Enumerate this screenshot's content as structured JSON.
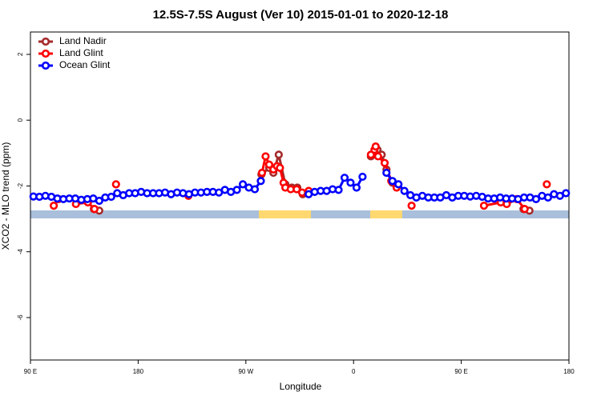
{
  "chart_data": {
    "type": "line",
    "title": "12.5S-7.5S August (Ver 10)   2015-01-01 to 2020-12-18",
    "x_label": "Longitude",
    "y_label": "XCO2 - MLO trend (ppm)",
    "xlim": [
      90,
      540
    ],
    "xticks": [
      {
        "value": 90,
        "label": "90 E"
      },
      180,
      {
        "value": 270,
        "label": "90 W"
      },
      {
        "value": 360,
        "label": "0"
      },
      {
        "value": 450,
        "label": "90 E"
      },
      {
        "value": 540,
        "label": "180"
      }
    ],
    "ylim": [
      -7.29,
      2.68
    ],
    "yticks": [
      2,
      0,
      -2,
      -4,
      -6
    ],
    "legend": "top-left",
    "series": [
      {
        "name": "Land Nadir",
        "color": "#a52a2a",
        "x": [
          143,
          147.5,
          200,
          283,
          289.5,
          293,
          297.5,
          303,
          308.5,
          313,
          317.5,
          350,
          374.5,
          380,
          383.5,
          387.5,
          392.5,
          397.5,
          450,
          502,
          507
        ],
        "values": [
          -2.7,
          -2.75,
          null,
          -1.65,
          -1.45,
          -1.6,
          -1.05,
          -1.95,
          -2.05,
          -2.05,
          -2.25,
          null,
          -1.1,
          -0.9,
          -1.05,
          -1.5,
          -1.9,
          -1.95,
          null,
          -2.7,
          -2.75
        ]
      },
      {
        "name": "Land Glint",
        "color": "#ff0000",
        "x": [
          109.5,
          113.5,
          120,
          128,
          138,
          143.5,
          150,
          161.5,
          200,
          222,
          250,
          283.5,
          286.5,
          289.5,
          293,
          296,
          298.5,
          301.5,
          303,
          307.5,
          312.5,
          317,
          322.5,
          350,
          374.5,
          377.5,
          378.5,
          380.5,
          386,
          391.5,
          396,
          402,
          408.5,
          440,
          469,
          483,
          488,
          496.5,
          503,
          510,
          521.5
        ],
        "values": [
          -2.6,
          -2.4,
          null,
          -2.55,
          -2.5,
          -2.7,
          null,
          -1.95,
          null,
          -2.3,
          null,
          -1.6,
          -1.1,
          -1.35,
          -1.5,
          -1.4,
          -1.45,
          -1.9,
          -2.05,
          -2.1,
          -2.1,
          -2.2,
          -2.15,
          null,
          -1.05,
          -0.9,
          -0.8,
          -1.1,
          -1.3,
          -1.85,
          -2.05,
          null,
          -2.6,
          null,
          -2.6,
          -2.5,
          -2.55,
          -2.4,
          -2.7,
          null,
          -1.95
        ]
      },
      {
        "name": "Ocean Glint",
        "color": "#0000ff",
        "x": [
          92.5,
          97.5,
          102.5,
          107.5,
          112.5,
          117.5,
          122.5,
          127.5,
          132.5,
          137.5,
          142.5,
          147.5,
          152.5,
          157.5,
          162.5,
          167.5,
          172.5,
          177.5,
          182.5,
          187.5,
          192.5,
          197.5,
          202.5,
          207.5,
          212.5,
          217.5,
          222.5,
          227.5,
          232.5,
          237.5,
          242.5,
          247.5,
          252.5,
          257.5,
          262.5,
          267.5,
          272.5,
          277.5,
          282.5,
          302.5,
          322.5,
          327.5,
          332.5,
          337.5,
          342.5,
          347.5,
          352.5,
          357.5,
          362.5,
          367.5,
          377.5,
          387.5,
          392.5,
          397.5,
          402.5,
          407.5,
          412.5,
          417.5,
          422.5,
          427.5,
          432.5,
          437.5,
          442.5,
          447.5,
          452.5,
          457.5,
          462.5,
          467.5,
          472.5,
          477.5,
          482.5,
          487.5,
          492.5,
          497.5,
          502.5,
          507.5,
          512.5,
          517.5,
          522.5,
          527.5,
          532.5,
          537.5
        ],
        "values": [
          -2.32,
          -2.33,
          -2.3,
          -2.33,
          -2.38,
          -2.4,
          -2.38,
          -2.38,
          -2.42,
          -2.4,
          -2.38,
          -2.45,
          -2.35,
          -2.33,
          -2.22,
          -2.28,
          -2.22,
          -2.22,
          -2.18,
          -2.22,
          -2.22,
          -2.22,
          -2.2,
          -2.25,
          -2.2,
          -2.22,
          -2.25,
          -2.2,
          -2.2,
          -2.18,
          -2.18,
          -2.2,
          -2.12,
          -2.18,
          -2.12,
          -1.95,
          -2.05,
          -2.1,
          -1.85,
          null,
          -2.25,
          -2.18,
          -2.15,
          -2.15,
          -2.1,
          -2.12,
          -1.75,
          -1.9,
          -2.05,
          -1.72,
          null,
          -1.6,
          -1.85,
          -1.95,
          -2.15,
          -2.28,
          -2.35,
          -2.3,
          -2.35,
          -2.35,
          -2.35,
          -2.28,
          -2.35,
          -2.3,
          -2.3,
          -2.32,
          -2.3,
          -2.33,
          -2.38,
          -2.38,
          -2.35,
          -2.38,
          -2.38,
          -2.4,
          -2.35,
          -2.35,
          -2.4,
          -2.3,
          -2.35,
          -2.25,
          -2.3,
          -2.22
        ]
      }
    ]
  }
}
